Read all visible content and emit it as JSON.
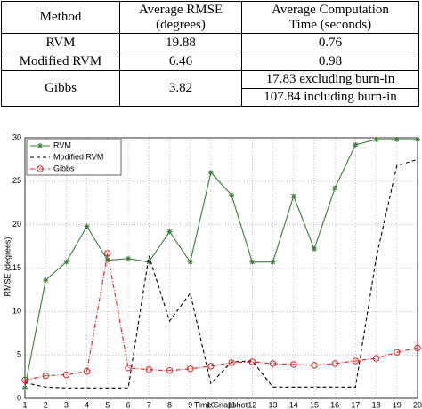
{
  "table": {
    "header": [
      [
        "Method"
      ],
      [
        "Average RMSE",
        "(degrees)"
      ],
      [
        "Average Computation",
        "Time (seconds)"
      ]
    ],
    "rows": [
      [
        "RVM",
        19.88,
        0.76
      ],
      [
        "Modified RVM",
        6.46,
        0.98
      ],
      [
        "Gibbs",
        3.82,
        [
          "17.83 excluding burn-in",
          "107.84 including burn-in"
        ]
      ]
    ]
  },
  "chart_data": {
    "type": "line",
    "x": [
      1,
      2,
      3,
      4,
      5,
      6,
      7,
      8,
      9,
      10,
      11,
      12,
      13,
      14,
      15,
      16,
      17,
      18,
      19,
      20
    ],
    "xlabel": "Time Snapshot",
    "ylabel": "RMSE (degrees)",
    "xlim": [
      1,
      20
    ],
    "xticks": [
      1,
      2,
      3,
      4,
      5,
      6,
      7,
      8,
      9,
      10,
      11,
      12,
      13,
      14,
      15,
      16,
      17,
      18,
      19,
      20
    ],
    "ylim": [
      0,
      30
    ],
    "yticks": [
      0,
      5,
      10,
      15,
      20,
      25,
      30
    ],
    "grid": true,
    "legend": "upper left",
    "series": [
      {
        "name": "RVM",
        "color": "#3a7d3a",
        "style": "solid",
        "marker": "star",
        "values": [
          1.2,
          13.6,
          15.7,
          19.8,
          15.9,
          16.1,
          15.7,
          19.2,
          15.7,
          26,
          23.4,
          15.7,
          15.7,
          23.3,
          17.2,
          24.2,
          29.2,
          29.8,
          29.8,
          29.8
        ]
      },
      {
        "name": "Modified RVM",
        "color": "#000000",
        "style": "dashed",
        "marker": "none",
        "values": [
          1.8,
          1.3,
          1.2,
          1.2,
          1.2,
          1.2,
          16.4,
          8.9,
          12.1,
          1.7,
          4.2,
          4.3,
          1.3,
          1.3,
          1.3,
          1.3,
          1.3,
          16.2,
          26.8,
          27.5
        ]
      },
      {
        "name": "Gibbs",
        "color": "#e02020",
        "style": "dashdot",
        "marker": "circle",
        "values": [
          2.1,
          2.6,
          2.7,
          3.1,
          16.7,
          3.5,
          3.3,
          3.2,
          3.4,
          3.7,
          4.1,
          4.2,
          4.0,
          3.9,
          3.8,
          4.0,
          4.3,
          4.6,
          5.3,
          5.8
        ]
      }
    ]
  }
}
